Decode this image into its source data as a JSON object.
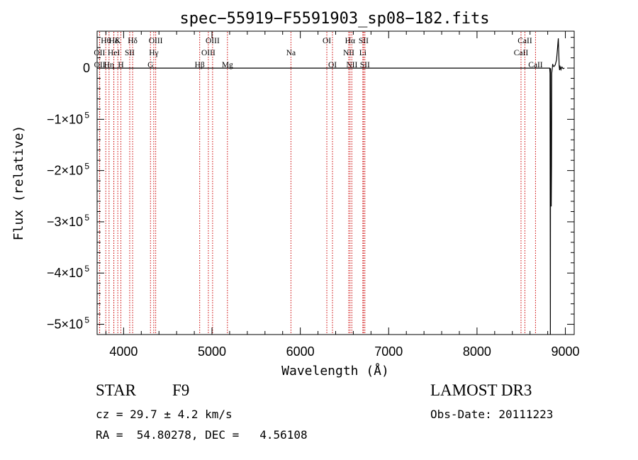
{
  "chart_data": {
    "type": "line",
    "title": "spec−55919−F5591903_sp08−182.fits",
    "xlabel": "Wavelength (Å)",
    "ylabel": "Flux (relative)",
    "xlim": [
      3700,
      9100
    ],
    "ylim": [
      -520000,
      72000
    ],
    "x_ticks": [
      {
        "value": 4000,
        "label": "4000"
      },
      {
        "value": 5000,
        "label": "5000"
      },
      {
        "value": 6000,
        "label": "6000"
      },
      {
        "value": 7000,
        "label": "7000"
      },
      {
        "value": 8000,
        "label": "8000"
      },
      {
        "value": 9000,
        "label": "9000"
      }
    ],
    "y_ticks": [
      {
        "value": 0,
        "base": "0",
        "exp": ""
      },
      {
        "value": -100000,
        "base": "−1×10",
        "exp": "5"
      },
      {
        "value": -200000,
        "base": "−2×10",
        "exp": "5"
      },
      {
        "value": -300000,
        "base": "−3×10",
        "exp": "5"
      },
      {
        "value": -400000,
        "base": "−4×10",
        "exp": "5"
      },
      {
        "value": -500000,
        "base": "−5×10",
        "exp": "5"
      }
    ],
    "grid": false,
    "series": [
      {
        "name": "flux",
        "x": [
          3700,
          4500,
          5500,
          6500,
          7500,
          8500,
          8780,
          8810,
          8822,
          8826,
          8830,
          8833,
          8836,
          8840,
          8843,
          8846,
          8850,
          8853,
          8856,
          8860,
          8870,
          8885,
          8900,
          8910,
          8920,
          8930,
          8935,
          8940,
          8945,
          8950,
          8960,
          8975,
          8990
        ],
        "y": [
          0,
          0,
          0,
          0,
          0,
          0,
          0,
          0,
          0,
          -10000,
          -520000,
          0,
          -180000,
          -270000,
          -190000,
          -10000,
          -4000,
          0,
          8000,
          5000,
          3000,
          6000,
          16000,
          36000,
          58000,
          4000,
          -4000,
          3000,
          1000,
          -3000,
          2000,
          -1000,
          0
        ]
      }
    ],
    "lines": [
      {
        "name": "OII",
        "wave": 3727,
        "label": "OII",
        "row": 2
      },
      {
        "name": "OII",
        "wave": 3729,
        "label": "OII",
        "row": 3
      },
      {
        "name": "Hθ",
        "wave": 3798,
        "label": "Hθ",
        "row": 1
      },
      {
        "name": "Hη",
        "wave": 3835,
        "label": "Hη",
        "row": 3
      },
      {
        "name": "HeI",
        "wave": 3889,
        "label": "HeI",
        "row": 2
      },
      {
        "name": "Hδ",
        "wave": 3889,
        "label": "Hδ",
        "row": 1
      },
      {
        "name": "K",
        "wave": 3934,
        "label": "K",
        "row": 1
      },
      {
        "name": "H",
        "wave": 3969,
        "label": "H",
        "row": 3
      },
      {
        "name": "SII",
        "wave": 4069,
        "label": "SII",
        "row": 2
      },
      {
        "name": "Hδ",
        "wave": 4102,
        "label": "Hδ",
        "row": 1
      },
      {
        "name": "G",
        "wave": 4304,
        "label": "G",
        "row": 3
      },
      {
        "name": "Hγ",
        "wave": 4341,
        "label": "Hγ",
        "row": 2
      },
      {
        "name": "OIII",
        "wave": 4363,
        "label": "OIII",
        "row": 1
      },
      {
        "name": "Hβ",
        "wave": 4861,
        "label": "Hβ",
        "row": 3
      },
      {
        "name": "OIII",
        "wave": 4959,
        "label": "OIII",
        "row": 2
      },
      {
        "name": "OIII",
        "wave": 5007,
        "label": "OIII",
        "row": 1
      },
      {
        "name": "Mg",
        "wave": 5175,
        "label": "Mg",
        "row": 3
      },
      {
        "name": "Na",
        "wave": 5894,
        "label": "Na",
        "row": 2
      },
      {
        "name": "OI",
        "wave": 6300,
        "label": "OI",
        "row": 1
      },
      {
        "name": "OI",
        "wave": 6364,
        "label": "OI",
        "row": 3
      },
      {
        "name": "NII",
        "wave": 6548,
        "label": "NII",
        "row": 2
      },
      {
        "name": "Hα",
        "wave": 6563,
        "label": "Hα",
        "row": 1
      },
      {
        "name": "NII",
        "wave": 6583,
        "label": "NII",
        "row": 3
      },
      {
        "name": "Li",
        "wave": 6708,
        "label": "Li",
        "row": 2
      },
      {
        "name": "SII",
        "wave": 6716,
        "label": "SII",
        "row": 1
      },
      {
        "name": "SII",
        "wave": 6731,
        "label": "SII",
        "row": 3
      },
      {
        "name": "CaII",
        "wave": 8498,
        "label": "CaII",
        "row": 2
      },
      {
        "name": "CaII",
        "wave": 8542,
        "label": "CaII",
        "row": 1
      },
      {
        "name": "CaII",
        "wave": 8662,
        "label": "CaII",
        "row": 3
      }
    ]
  },
  "info": {
    "object_class": "STAR",
    "subclass": "F9",
    "survey": "LAMOST DR3",
    "redshift": "cz = 29.7 ± 4.2 km/s",
    "obs_date": "Obs-Date: 20111223",
    "coords": "RA =  54.80278, DEC =   4.56108"
  },
  "colors": {
    "axis": "#000000",
    "spectrum": "#000000",
    "line_marker": "#cc0000"
  }
}
